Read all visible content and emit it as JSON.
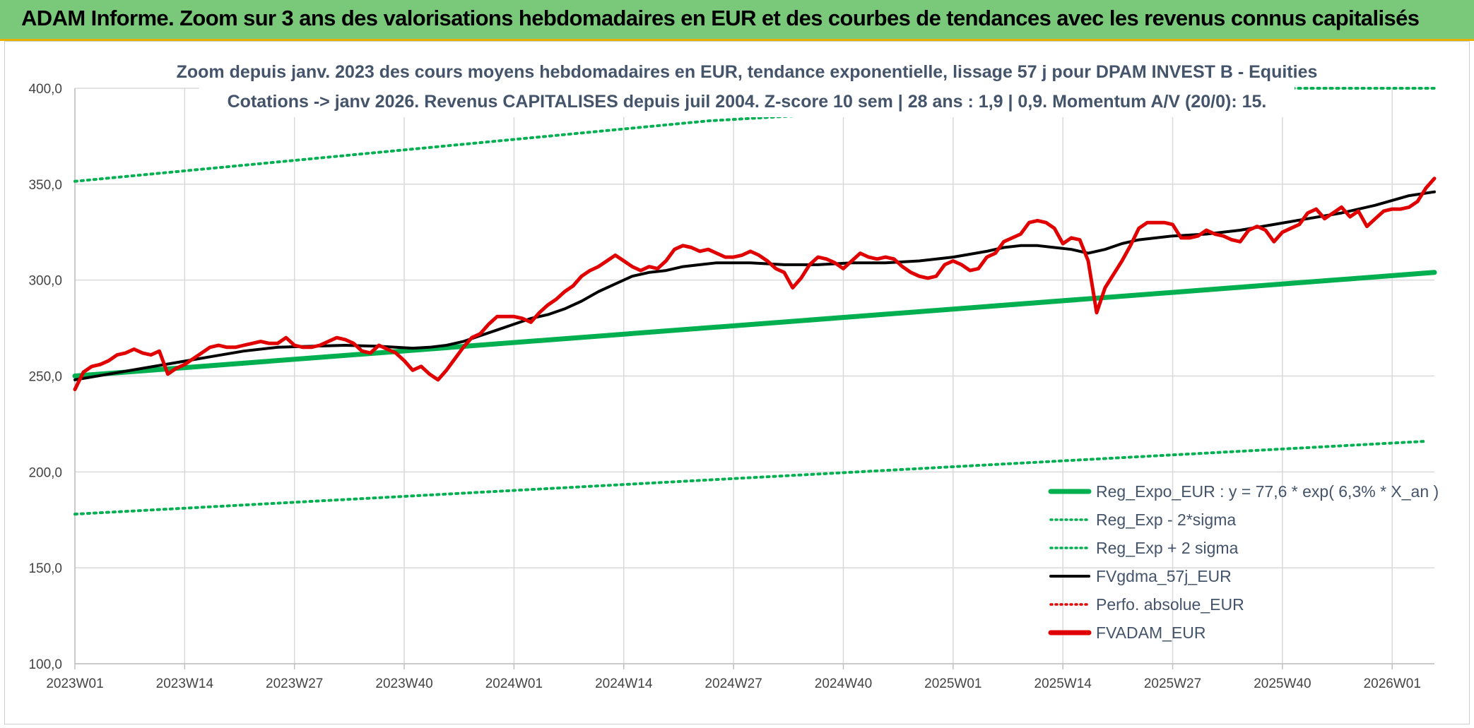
{
  "banner": {
    "title": "ADAM Informe. Zoom sur 3 ans des valorisations hebdomadaires en EUR et des courbes de tendances avec les revenus connus capitalisés"
  },
  "chart_data": {
    "type": "line",
    "title_lines": [
      "Zoom depuis janv. 2023 des cours moyens hebdomadaires en EUR, tendance exponentielle, lissage 57 j pour DPAM INVEST B - Equities",
      "Cotations -> janv 2026. Revenus CAPITALISES depuis juil 2004. Z-score 10 sem | 28 ans : 1,9 | 0,9. Momentum A/V (20/0): 15."
    ],
    "ylim": [
      100,
      400
    ],
    "y_ticks": [
      "100,0",
      "150,0",
      "200,0",
      "250,0",
      "300,0",
      "350,0",
      "400,0"
    ],
    "y_tick_values": [
      100,
      150,
      200,
      250,
      300,
      350,
      400
    ],
    "x_ticks": [
      "2023W01",
      "2023W14",
      "2023W27",
      "2023W40",
      "2024W01",
      "2024W14",
      "2024W27",
      "2024W40",
      "2025W01",
      "2025W14",
      "2025W27",
      "2025W40",
      "2026W01"
    ],
    "x_tick_weeks": [
      0,
      13,
      26,
      39,
      52,
      65,
      78,
      91,
      104,
      117,
      130,
      143,
      156
    ],
    "x_range": [
      0,
      161
    ],
    "legend": [
      {
        "name": "Reg_Expo_EUR : y = 77,6 * exp( 6,3% *  X_an )",
        "color": "#00b050",
        "style": "thick"
      },
      {
        "name": "Reg_Exp - 2*sigma",
        "color": "#00b050",
        "style": "dotted"
      },
      {
        "name": "Reg_Exp + 2 sigma",
        "color": "#00b050",
        "style": "dotted"
      },
      {
        "name": "FVgdma_57j_EUR",
        "color": "#000000",
        "style": "solid"
      },
      {
        "name": "Perfo. absolue_EUR",
        "color": "#e00000",
        "style": "dotted"
      },
      {
        "name": "FVADAM_EUR",
        "color": "#e00000",
        "style": "thick"
      }
    ],
    "series": [
      {
        "name": "Reg_Expo_EUR",
        "color": "#00b050",
        "points": [
          [
            0,
            250
          ],
          [
            161,
            304
          ]
        ]
      },
      {
        "name": "Reg_Exp - 2*sigma",
        "color": "#00b050",
        "points": [
          [
            0,
            178
          ],
          [
            160,
            216
          ]
        ]
      },
      {
        "name": "Reg_Exp + 2 sigma",
        "color": "#00b050",
        "points": [
          [
            0,
            351.5
          ],
          [
            75,
            383
          ],
          [
            141,
            400
          ],
          [
            161,
            400
          ]
        ]
      },
      {
        "name": "FVgdma_57j_EUR",
        "color": "#000000",
        "points": [
          [
            0,
            248
          ],
          [
            4,
            251
          ],
          [
            8,
            254
          ],
          [
            12,
            257
          ],
          [
            16,
            260
          ],
          [
            20,
            263
          ],
          [
            24,
            265
          ],
          [
            28,
            265.5
          ],
          [
            32,
            266
          ],
          [
            36,
            265.5
          ],
          [
            40,
            264.5
          ],
          [
            42,
            265
          ],
          [
            44,
            266
          ],
          [
            46,
            268
          ],
          [
            48,
            271
          ],
          [
            50,
            274
          ],
          [
            52,
            277
          ],
          [
            54,
            280
          ],
          [
            56,
            282
          ],
          [
            58,
            285
          ],
          [
            60,
            289
          ],
          [
            62,
            294
          ],
          [
            64,
            298
          ],
          [
            66,
            302
          ],
          [
            68,
            304
          ],
          [
            70,
            305
          ],
          [
            72,
            307
          ],
          [
            74,
            308
          ],
          [
            76,
            309
          ],
          [
            80,
            309
          ],
          [
            84,
            308
          ],
          [
            88,
            308
          ],
          [
            92,
            309
          ],
          [
            96,
            309
          ],
          [
            100,
            310
          ],
          [
            104,
            312
          ],
          [
            108,
            315
          ],
          [
            110,
            317
          ],
          [
            112,
            318
          ],
          [
            114,
            318
          ],
          [
            116,
            317
          ],
          [
            118,
            316
          ],
          [
            119,
            315
          ],
          [
            120,
            314
          ],
          [
            122,
            316
          ],
          [
            124,
            319
          ],
          [
            126,
            321
          ],
          [
            128,
            322
          ],
          [
            130,
            323
          ],
          [
            134,
            324
          ],
          [
            138,
            326
          ],
          [
            142,
            329
          ],
          [
            146,
            332
          ],
          [
            150,
            335
          ],
          [
            154,
            339
          ],
          [
            158,
            344
          ],
          [
            161,
            346
          ]
        ]
      },
      {
        "name": "FVADAM_EUR",
        "color": "#e00000",
        "points": [
          [
            0,
            243
          ],
          [
            1,
            252
          ],
          [
            2,
            255
          ],
          [
            3,
            256
          ],
          [
            4,
            258
          ],
          [
            5,
            261
          ],
          [
            6,
            262
          ],
          [
            7,
            264
          ],
          [
            8,
            262
          ],
          [
            9,
            261
          ],
          [
            10,
            263
          ],
          [
            11,
            251
          ],
          [
            12,
            254
          ],
          [
            13,
            256
          ],
          [
            14,
            259
          ],
          [
            15,
            262
          ],
          [
            16,
            265
          ],
          [
            17,
            266
          ],
          [
            18,
            265
          ],
          [
            19,
            265
          ],
          [
            20,
            266
          ],
          [
            21,
            267
          ],
          [
            22,
            268
          ],
          [
            23,
            267
          ],
          [
            24,
            267
          ],
          [
            25,
            270
          ],
          [
            26,
            266
          ],
          [
            27,
            265
          ],
          [
            28,
            265
          ],
          [
            29,
            266
          ],
          [
            30,
            268
          ],
          [
            31,
            270
          ],
          [
            32,
            269
          ],
          [
            33,
            267
          ],
          [
            34,
            263
          ],
          [
            35,
            262
          ],
          [
            36,
            266
          ],
          [
            37,
            264
          ],
          [
            38,
            262
          ],
          [
            39,
            258
          ],
          [
            40,
            253
          ],
          [
            41,
            255
          ],
          [
            42,
            251
          ],
          [
            43,
            248
          ],
          [
            44,
            253
          ],
          [
            45,
            259
          ],
          [
            46,
            265
          ],
          [
            47,
            270
          ],
          [
            48,
            272
          ],
          [
            49,
            277
          ],
          [
            50,
            281
          ],
          [
            51,
            281
          ],
          [
            52,
            281
          ],
          [
            53,
            280
          ],
          [
            54,
            278
          ],
          [
            55,
            283
          ],
          [
            56,
            287
          ],
          [
            57,
            290
          ],
          [
            58,
            294
          ],
          [
            59,
            297
          ],
          [
            60,
            302
          ],
          [
            61,
            305
          ],
          [
            62,
            307
          ],
          [
            63,
            310
          ],
          [
            64,
            313
          ],
          [
            65,
            310
          ],
          [
            66,
            307
          ],
          [
            67,
            305
          ],
          [
            68,
            307
          ],
          [
            69,
            306
          ],
          [
            70,
            310
          ],
          [
            71,
            316
          ],
          [
            72,
            318
          ],
          [
            73,
            317
          ],
          [
            74,
            315
          ],
          [
            75,
            316
          ],
          [
            76,
            314
          ],
          [
            77,
            312
          ],
          [
            78,
            312
          ],
          [
            79,
            313
          ],
          [
            80,
            315
          ],
          [
            81,
            313
          ],
          [
            82,
            310
          ],
          [
            83,
            306
          ],
          [
            84,
            304
          ],
          [
            85,
            296
          ],
          [
            86,
            301
          ],
          [
            87,
            308
          ],
          [
            88,
            312
          ],
          [
            89,
            311
          ],
          [
            90,
            309
          ],
          [
            91,
            306
          ],
          [
            92,
            310
          ],
          [
            93,
            314
          ],
          [
            94,
            312
          ],
          [
            95,
            311
          ],
          [
            96,
            312
          ],
          [
            97,
            311
          ],
          [
            98,
            307
          ],
          [
            99,
            304
          ],
          [
            100,
            302
          ],
          [
            101,
            301
          ],
          [
            102,
            302
          ],
          [
            103,
            308
          ],
          [
            104,
            310
          ],
          [
            105,
            308
          ],
          [
            106,
            305
          ],
          [
            107,
            306
          ],
          [
            108,
            312
          ],
          [
            109,
            314
          ],
          [
            110,
            320
          ],
          [
            111,
            322
          ],
          [
            112,
            324
          ],
          [
            113,
            330
          ],
          [
            114,
            331
          ],
          [
            115,
            330
          ],
          [
            116,
            327
          ],
          [
            117,
            319
          ],
          [
            118,
            322
          ],
          [
            119,
            321
          ],
          [
            120,
            310
          ],
          [
            121,
            283
          ],
          [
            122,
            296
          ],
          [
            123,
            303
          ],
          [
            124,
            310
          ],
          [
            125,
            318
          ],
          [
            126,
            327
          ],
          [
            127,
            330
          ],
          [
            128,
            330
          ],
          [
            129,
            330
          ],
          [
            130,
            329
          ],
          [
            131,
            322
          ],
          [
            132,
            322
          ],
          [
            133,
            323
          ],
          [
            134,
            326
          ],
          [
            135,
            324
          ],
          [
            136,
            323
          ],
          [
            137,
            321
          ],
          [
            138,
            320
          ],
          [
            139,
            326
          ],
          [
            140,
            328
          ],
          [
            141,
            326
          ],
          [
            142,
            320
          ],
          [
            143,
            325
          ],
          [
            144,
            327
          ],
          [
            145,
            329
          ],
          [
            146,
            335
          ],
          [
            147,
            337
          ],
          [
            148,
            332
          ],
          [
            149,
            335
          ],
          [
            150,
            338
          ],
          [
            151,
            333
          ],
          [
            152,
            336
          ],
          [
            153,
            328
          ],
          [
            154,
            332
          ],
          [
            155,
            336
          ],
          [
            156,
            337
          ],
          [
            157,
            337
          ],
          [
            158,
            338
          ],
          [
            159,
            341
          ],
          [
            160,
            348
          ],
          [
            161,
            353
          ]
        ]
      }
    ]
  }
}
